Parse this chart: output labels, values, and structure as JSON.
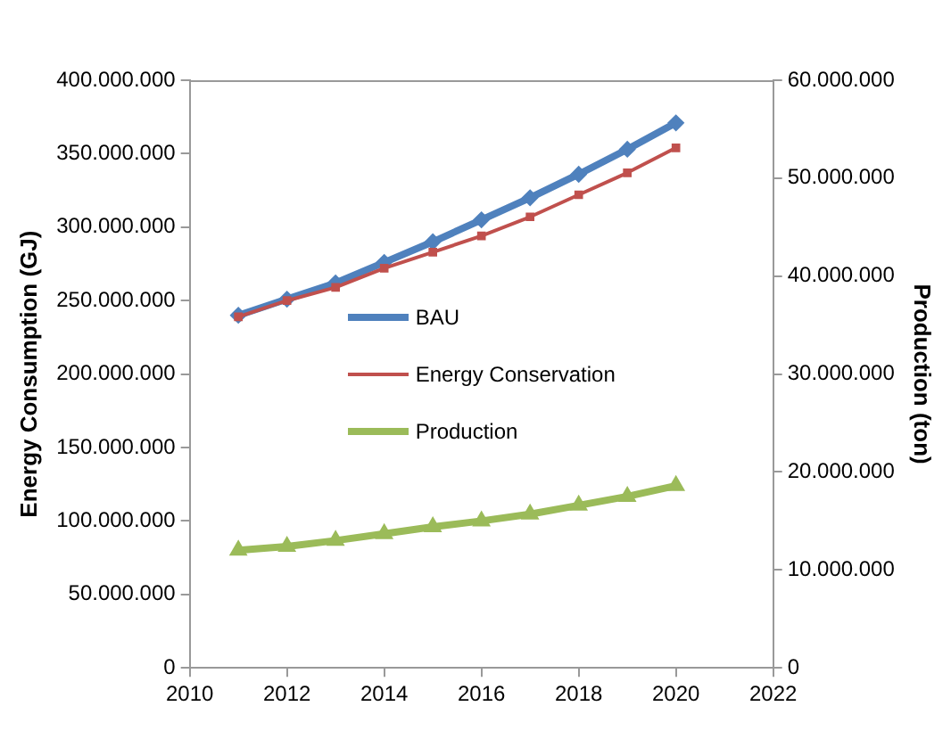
{
  "chart_data": {
    "type": "line",
    "ylabel": "Energy Consumption (GJ)",
    "y2label": "Production (ton)",
    "x": [
      2011,
      2012,
      2013,
      2014,
      2015,
      2016,
      2017,
      2018,
      2019,
      2020
    ],
    "series": [
      {
        "name": "BAU",
        "color": "#4f81bd",
        "marker": "diamond",
        "values": [
          240000000,
          251000000,
          262000000,
          276000000,
          290000000,
          305000000,
          320000000,
          336000000,
          353000000,
          371000000
        ]
      },
      {
        "name": "Energy Conservation",
        "color": "#c0504d",
        "marker": "square",
        "values": [
          239000000,
          250000000,
          259000000,
          272000000,
          283000000,
          294000000,
          307000000,
          322000000,
          337000000,
          354000000
        ]
      },
      {
        "name": "Production",
        "color": "#9bbb59",
        "marker": "triangle",
        "axis": "y2",
        "values": [
          12000000,
          12400000,
          13000000,
          13700000,
          14400000,
          15000000,
          15700000,
          16600000,
          17500000,
          18600000
        ]
      }
    ],
    "xlim": [
      2010,
      2022
    ],
    "xticks": [
      2010,
      2012,
      2014,
      2016,
      2018,
      2020,
      2022
    ],
    "ylim": [
      0,
      400000000
    ],
    "yticks": [
      {
        "value": 0,
        "label": "0"
      },
      {
        "value": 50000000,
        "label": "50.000.000"
      },
      {
        "value": 100000000,
        "label": "100.000.000"
      },
      {
        "value": 150000000,
        "label": "150.000.000"
      },
      {
        "value": 200000000,
        "label": "200.000.000"
      },
      {
        "value": 250000000,
        "label": "250.000.000"
      },
      {
        "value": 300000000,
        "label": "300.000.000"
      },
      {
        "value": 350000000,
        "label": "350.000.000"
      },
      {
        "value": 400000000,
        "label": "400.000.000"
      }
    ],
    "y2lim": [
      0,
      60000000
    ],
    "y2ticks": [
      {
        "value": 0,
        "label": "0"
      },
      {
        "value": 10000000,
        "label": "10.000.000"
      },
      {
        "value": 20000000,
        "label": "20.000.000"
      },
      {
        "value": 30000000,
        "label": "30.000.000"
      },
      {
        "value": 40000000,
        "label": "40.000.000"
      },
      {
        "value": 50000000,
        "label": "50.000.000"
      },
      {
        "value": 60000000,
        "label": "60.000.000"
      }
    ],
    "grid": false,
    "legend": "center",
    "line_style": "solid"
  }
}
